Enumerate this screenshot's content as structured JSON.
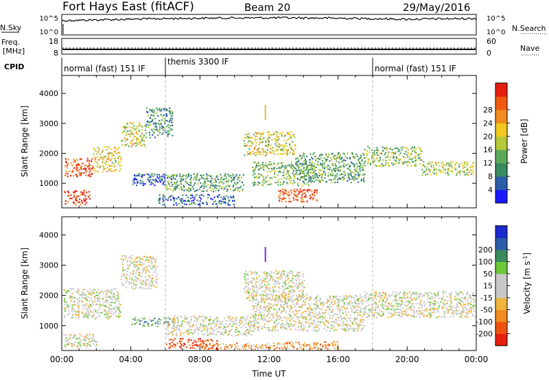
{
  "header": {
    "radar_title": "Fort Hays East (fitACF)",
    "beam": "Beam 20",
    "date": "29/May/2016"
  },
  "top_panels": {
    "nsky_label": "N.Sky",
    "nsky_ticks": [
      "10^5",
      "10^0"
    ],
    "nsearch_label": "N.Search",
    "nsearch_ticks": [
      "10^5",
      "10^0"
    ],
    "freq_label_1": "Freq.",
    "freq_label_2": "[MHz]",
    "freq_ticks": [
      "18",
      "8"
    ],
    "nave_label": "Nave",
    "nave_ticks": [
      "60",
      "0"
    ],
    "cpid_label": "CPID",
    "cpid_segments": [
      {
        "label": "normal (fast) 151 IF",
        "start_h": 0,
        "end_h": 6
      },
      {
        "label": "themis 3300 IF",
        "start_h": 6,
        "end_h": 18
      },
      {
        "label": "normal (fast) 151 IF",
        "start_h": 18,
        "end_h": 24
      }
    ]
  },
  "colors": {
    "power": [
      "#1a1aff",
      "#2b5ca8",
      "#3a8a60",
      "#5aaa5a",
      "#b4c83a",
      "#f0c81e",
      "#f08c1e",
      "#f05a0f",
      "#e61e0f"
    ],
    "velocity": [
      "#e61e0f",
      "#f0500f",
      "#f08c1e",
      "#f0b43c",
      "#c8c8c8",
      "#c8c8c8",
      "#6ec83a",
      "#3a8a60",
      "#2b5ca8",
      "#1a2acc"
    ]
  },
  "chart_data": [
    {
      "type": "heatmap",
      "name": "power",
      "ylabel": "Slant Range [km]",
      "ylim": [
        180,
        4600
      ],
      "yticks": [
        "1000",
        "2000",
        "3000",
        "4000"
      ],
      "colorbar_label": "Power [dB]",
      "colorbar_ticks": [
        "4",
        "8",
        "12",
        "16",
        "20",
        "24",
        "28"
      ],
      "regions": [
        {
          "t0": 0.1,
          "t1": 1.8,
          "r0": 1200,
          "r1": 1800,
          "level": 0.85
        },
        {
          "t0": 1.8,
          "t1": 3.4,
          "r0": 1350,
          "r1": 2200,
          "level": 0.6
        },
        {
          "t0": 3.4,
          "t1": 4.8,
          "r0": 2200,
          "r1": 3000,
          "level": 0.55
        },
        {
          "t0": 4.8,
          "t1": 6.4,
          "r0": 2500,
          "r1": 3500,
          "level": 0.3
        },
        {
          "t0": 0.1,
          "t1": 1.6,
          "r0": 250,
          "r1": 750,
          "level": 0.9
        },
        {
          "t0": 4.0,
          "t1": 6.0,
          "r0": 900,
          "r1": 1300,
          "level": 0.15
        },
        {
          "t0": 6.0,
          "t1": 10.5,
          "r0": 700,
          "r1": 1300,
          "level": 0.35
        },
        {
          "t0": 5.5,
          "t1": 10.0,
          "r0": 250,
          "r1": 600,
          "level": 0.2
        },
        {
          "t0": 10.5,
          "t1": 13.5,
          "r0": 1900,
          "r1": 2700,
          "level": 0.55
        },
        {
          "t0": 11.0,
          "t1": 14.5,
          "r0": 900,
          "r1": 1700,
          "level": 0.4
        },
        {
          "t0": 12.5,
          "t1": 14.8,
          "r0": 350,
          "r1": 800,
          "level": 0.85
        },
        {
          "t0": 13.5,
          "t1": 17.5,
          "r0": 1000,
          "r1": 2000,
          "level": 0.35
        },
        {
          "t0": 17.5,
          "t1": 20.8,
          "r0": 1550,
          "r1": 2200,
          "level": 0.45
        },
        {
          "t0": 20.8,
          "t1": 23.9,
          "r0": 1250,
          "r1": 1700,
          "level": 0.5
        }
      ]
    },
    {
      "type": "heatmap",
      "name": "velocity",
      "xlabel": "Time UT",
      "ylabel": "Slant Range [km]",
      "ylim": [
        180,
        4600
      ],
      "yticks": [
        "1000",
        "2000",
        "3000",
        "4000"
      ],
      "xticks": [
        "00:00",
        "04:00",
        "08:00",
        "12:00",
        "16:00",
        "20:00",
        "00:00"
      ],
      "colorbar_label": "Velocity [m s^-1]",
      "colorbar_ticks": [
        "-200",
        "-100",
        "-50",
        "-15",
        "15",
        "50",
        "100",
        "200"
      ],
      "regions": [
        {
          "t0": 0.1,
          "t1": 3.4,
          "r0": 1200,
          "r1": 2200,
          "level": 0.5
        },
        {
          "t0": 3.4,
          "t1": 5.5,
          "r0": 2200,
          "r1": 3300,
          "level": 0.45
        },
        {
          "t0": 0.1,
          "t1": 2.0,
          "r0": 250,
          "r1": 700,
          "level": 0.5
        },
        {
          "t0": 4.0,
          "t1": 6.5,
          "r0": 950,
          "r1": 1250,
          "level": 0.68
        },
        {
          "t0": 6.0,
          "t1": 11.0,
          "r0": 650,
          "r1": 1300,
          "level": 0.48
        },
        {
          "t0": 6.0,
          "t1": 9.0,
          "r0": 200,
          "r1": 550,
          "level": 0.1
        },
        {
          "t0": 8.0,
          "t1": 12.0,
          "r0": 200,
          "r1": 400,
          "level": 0.3
        },
        {
          "t0": 10.5,
          "t1": 14.0,
          "r0": 1800,
          "r1": 2800,
          "level": 0.48
        },
        {
          "t0": 11.0,
          "t1": 17.5,
          "r0": 800,
          "r1": 2000,
          "level": 0.48
        },
        {
          "t0": 12.0,
          "t1": 16.0,
          "r0": 200,
          "r1": 450,
          "level": 0.3
        },
        {
          "t0": 17.5,
          "t1": 23.9,
          "r0": 1250,
          "r1": 2100,
          "level": 0.48
        }
      ]
    }
  ]
}
